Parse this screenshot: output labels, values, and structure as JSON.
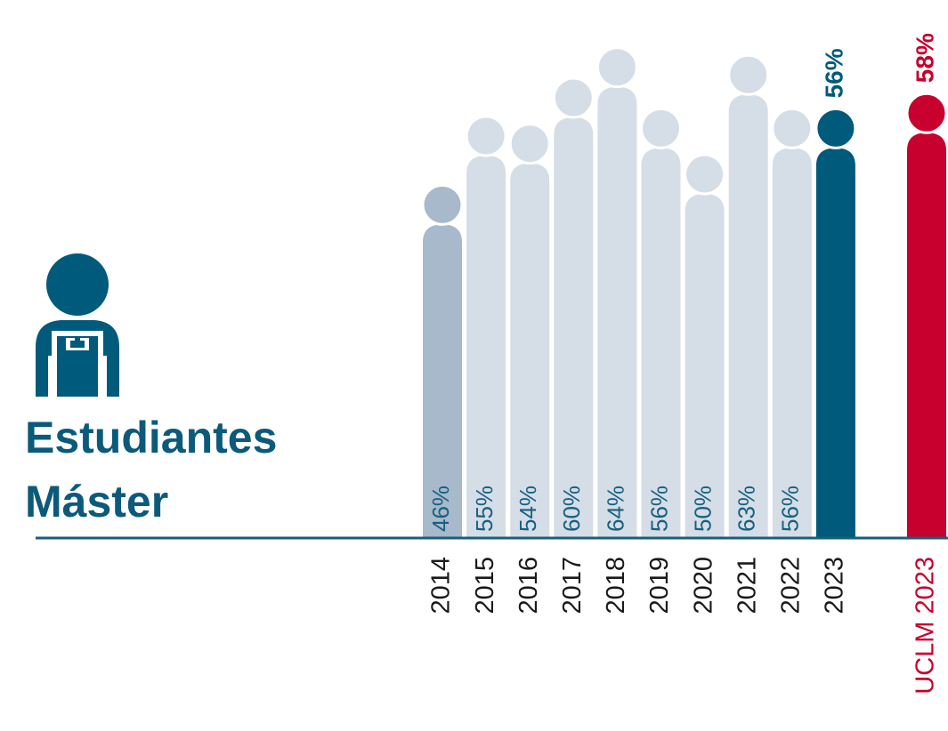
{
  "chart_data": {
    "type": "bar",
    "title": [
      "Estudiantes",
      "Máster"
    ],
    "categories": [
      "2014",
      "2015",
      "2016",
      "2017",
      "2018",
      "2019",
      "2020",
      "2021",
      "2022",
      "2023",
      "UCLM 2023"
    ],
    "values": [
      46,
      55,
      54,
      60,
      64,
      56,
      50,
      63,
      56,
      56,
      58
    ],
    "value_labels": [
      "46%",
      "55%",
      "54%",
      "60%",
      "64%",
      "56%",
      "50%",
      "63%",
      "56%",
      "56%",
      "58%"
    ],
    "colors": [
      "#a7b9cb",
      "#d5dde7",
      "#d5dde7",
      "#d5dde7",
      "#d5dde7",
      "#d5dde7",
      "#d5dde7",
      "#d5dde7",
      "#d5dde7",
      "#005a7c",
      "#c8002d"
    ],
    "value_label_position": [
      "inside",
      "inside",
      "inside",
      "inside",
      "inside",
      "inside",
      "inside",
      "inside",
      "inside",
      "outside",
      "outside"
    ]
  }
}
